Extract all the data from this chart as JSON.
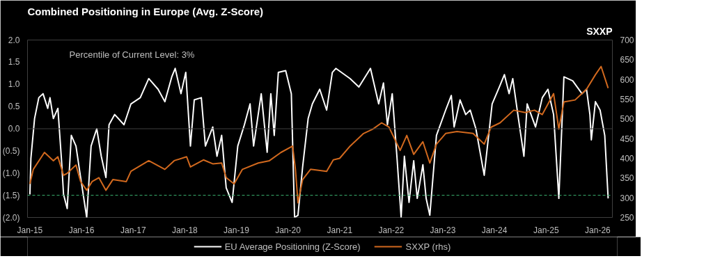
{
  "chart_data": {
    "type": "line",
    "title": "Combined Positioning in Europe (Avg. Z-Score)",
    "y2label": "SXXP",
    "annotations": [
      "Percentile of Current Level: 3%"
    ],
    "xlim": [
      "2014-12-15",
      "2026-04-15"
    ],
    "xticks": [
      {
        "value": "2015-01-01",
        "label": "Jan-15"
      },
      {
        "value": "2016-01-01",
        "label": "Jan-16"
      },
      {
        "value": "2017-01-01",
        "label": "Jan-17"
      },
      {
        "value": "2018-01-01",
        "label": "Jan-18"
      },
      {
        "value": "2019-01-01",
        "label": "Jan-19"
      },
      {
        "value": "2020-01-01",
        "label": "Jan-20"
      },
      {
        "value": "2021-01-01",
        "label": "Jan-21"
      },
      {
        "value": "2022-01-01",
        "label": "Jan-22"
      },
      {
        "value": "2023-01-01",
        "label": "Jan-23"
      },
      {
        "value": "2024-01-01",
        "label": "Jan-24"
      },
      {
        "value": "2025-01-01",
        "label": "Jan-25"
      },
      {
        "value": "2026-01-01",
        "label": "Jan-26"
      }
    ],
    "ylim": [
      -2.0,
      2.0
    ],
    "yticks": [
      {
        "value": -2.0,
        "label": "(2.0)"
      },
      {
        "value": -1.5,
        "label": "(1.5)"
      },
      {
        "value": -1.0,
        "label": "(1.0)"
      },
      {
        "value": -0.5,
        "label": "(0.5)"
      },
      {
        "value": 0,
        "label": "0.0"
      },
      {
        "value": 0.5,
        "label": "0.5"
      },
      {
        "value": 1.0,
        "label": "1.0"
      },
      {
        "value": 1.5,
        "label": "1.5"
      },
      {
        "value": 2.0,
        "label": "2.0"
      }
    ],
    "y2lim": [
      250,
      700
    ],
    "y2ticks": [
      250,
      300,
      350,
      400,
      450,
      500,
      550,
      600,
      650,
      700
    ],
    "ref_lines": [
      {
        "axis": "y",
        "value": 0,
        "label": null,
        "color": "#404040",
        "line_style": "solid"
      },
      {
        "axis": "y",
        "value": -1.5,
        "label": null,
        "color": "#3cb371",
        "line_style": "dashed"
      }
    ],
    "grid": false,
    "legend": "bottom",
    "marker": "none",
    "line_style": "solid",
    "series": [
      {
        "name": "EU Average Positioning (Z-Score)",
        "color": "#ffffff",
        "x": [
          "2015-01-01",
          "2015-01-08",
          "2015-02-03",
          "2015-03-05",
          "2015-04-04",
          "2015-05-07",
          "2015-05-23",
          "2015-06-16",
          "2015-07-18",
          "2015-08-13",
          "2015-08-27",
          "2015-09-22",
          "2015-10-21",
          "2015-11-23",
          "2015-12-26",
          "2016-02-07",
          "2016-03-09",
          "2016-04-18",
          "2016-05-20",
          "2016-06-22",
          "2016-07-14",
          "2016-08-23",
          "2016-10-28",
          "2016-12-16",
          "2017-02-20",
          "2017-04-21",
          "2017-06-26",
          "2017-08-13",
          "2017-10-01",
          "2017-10-25",
          "2017-12-05",
          "2018-01-08",
          "2018-02-10",
          "2018-03-09",
          "2018-04-28",
          "2018-05-27",
          "2018-07-18",
          "2018-08-17",
          "2018-09-19",
          "2018-10-21",
          "2018-12-02",
          "2019-01-11",
          "2019-02-27",
          "2019-04-08",
          "2019-05-03",
          "2019-06-26",
          "2019-08-07",
          "2019-09-02",
          "2019-09-26",
          "2019-10-25",
          "2019-12-16",
          "2020-01-25",
          "2020-02-17",
          "2020-03-12",
          "2020-04-14",
          "2020-05-23",
          "2020-06-22",
          "2020-08-13",
          "2020-10-01",
          "2020-11-10",
          "2020-12-05",
          "2021-03-16",
          "2021-05-17",
          "2021-08-07",
          "2021-10-04",
          "2021-11-07",
          "2021-12-05",
          "2022-01-08",
          "2022-02-10",
          "2022-03-12",
          "2022-04-04",
          "2022-05-07",
          "2022-06-09",
          "2022-07-04",
          "2022-08-13",
          "2022-09-05",
          "2022-10-01",
          "2022-11-17",
          "2023-01-21",
          "2023-03-02",
          "2023-03-22",
          "2023-05-03",
          "2023-06-12",
          "2023-07-14",
          "2023-08-23",
          "2023-10-21",
          "2023-12-16",
          "2024-02-10",
          "2024-03-12",
          "2024-04-14",
          "2024-05-10",
          "2024-06-19",
          "2024-07-28",
          "2024-08-20",
          "2024-10-18",
          "2024-12-05",
          "2025-01-14",
          "2025-02-23",
          "2025-04-01",
          "2025-05-07",
          "2025-07-08",
          "2025-09-12",
          "2025-10-14",
          "2025-11-07",
          "2025-11-17",
          "2025-12-16",
          "2026-01-18",
          "2026-02-20",
          "2026-03-16"
        ],
        "values": [
          -1.48,
          -0.67,
          0.23,
          0.7,
          0.79,
          0.46,
          0.7,
          0.23,
          0.46,
          -0.72,
          -1.48,
          -1.8,
          -0.15,
          -0.39,
          -1.1,
          -2.0,
          -0.39,
          0.0,
          -0.62,
          -1.1,
          0.09,
          0.32,
          0.09,
          0.56,
          0.7,
          1.13,
          0.89,
          0.61,
          1.17,
          1.36,
          0.79,
          1.27,
          -0.39,
          0.65,
          0.7,
          -0.39,
          0.04,
          -0.62,
          -0.15,
          -1.33,
          -1.66,
          -0.39,
          0.09,
          0.56,
          -0.39,
          0.79,
          -0.53,
          0.79,
          -0.15,
          1.27,
          1.31,
          0.79,
          -2.0,
          -1.95,
          -0.86,
          0.23,
          0.56,
          0.89,
          0.42,
          1.27,
          1.36,
          1.13,
          0.94,
          1.36,
          0.56,
          1.03,
          0.09,
          0.79,
          -0.62,
          -2.0,
          -0.62,
          -1.66,
          -0.72,
          -1.57,
          -0.81,
          -1.57,
          -1.95,
          -0.15,
          0.42,
          0.75,
          0.04,
          0.65,
          0.32,
          0.42,
          0.0,
          -1.05,
          0.56,
          0.98,
          1.22,
          0.79,
          1.13,
          0.23,
          -0.62,
          0.56,
          0.04,
          0.7,
          0.89,
          0.32,
          -1.57,
          1.17,
          1.08,
          0.79,
          0.89,
          0.32,
          -0.25,
          0.61,
          0.42,
          -0.15,
          -1.57
        ]
      },
      {
        "name": "SXXP (rhs)",
        "color": "#d2691e",
        "axis": "y2",
        "x": [
          "2015-01-01",
          "2015-01-25",
          "2015-04-14",
          "2015-06-16",
          "2015-07-18",
          "2015-08-27",
          "2015-09-22",
          "2015-11-23",
          "2015-12-26",
          "2016-02-07",
          "2016-03-16",
          "2016-05-03",
          "2016-06-22",
          "2016-08-10",
          "2016-11-13",
          "2016-12-16",
          "2017-04-21",
          "2017-08-13",
          "2017-10-18",
          "2018-01-14",
          "2018-02-10",
          "2018-05-13",
          "2018-07-18",
          "2018-09-19",
          "2018-10-21",
          "2018-12-16",
          "2019-02-13",
          "2019-06-05",
          "2019-08-23",
          "2019-11-13",
          "2020-02-03",
          "2020-02-23",
          "2020-03-12",
          "2020-04-14",
          "2020-06-09",
          "2020-10-01",
          "2020-11-17",
          "2021-01-01",
          "2021-03-16",
          "2021-06-19",
          "2021-08-23",
          "2021-10-25",
          "2021-12-16",
          "2022-03-05",
          "2022-04-21",
          "2022-06-09",
          "2022-08-13",
          "2022-10-01",
          "2022-11-17",
          "2023-01-21",
          "2023-04-11",
          "2023-08-03",
          "2023-10-21",
          "2023-12-09",
          "2024-02-10",
          "2024-05-17",
          "2024-08-07",
          "2024-10-11",
          "2024-12-05",
          "2025-02-23",
          "2025-04-01",
          "2025-05-07",
          "2025-07-25",
          "2025-10-14",
          "2025-12-16",
          "2026-01-25",
          "2026-03-16"
        ],
        "values": [
          335,
          372,
          415,
          394,
          404,
          357,
          362,
          383,
          341,
          319,
          341,
          351,
          319,
          346,
          341,
          367,
          394,
          372,
          394,
          404,
          378,
          396,
          386,
          388,
          351,
          335,
          372,
          388,
          394,
          415,
          431,
          372,
          287,
          346,
          372,
          367,
          396,
          400,
          431,
          463,
          474,
          490,
          479,
          420,
          458,
          410,
          442,
          388,
          436,
          463,
          468,
          463,
          436,
          479,
          490,
          522,
          516,
          522,
          511,
          564,
          474,
          543,
          548,
          575,
          612,
          633,
          578
        ]
      }
    ]
  }
}
